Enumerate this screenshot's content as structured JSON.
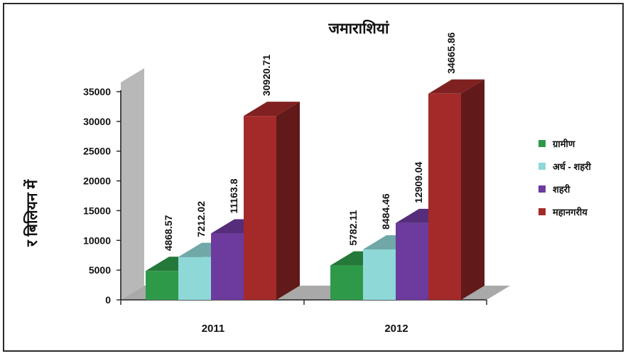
{
  "chart_data": {
    "type": "bar",
    "title": "जमाराशियां",
    "ylabel": "र बिलियन में",
    "xlabel": "",
    "categories": [
      "2011",
      "2012"
    ],
    "ylim": [
      0,
      35000
    ],
    "yticks": [
      "0",
      "5000",
      "10000",
      "15000",
      "20000",
      "25000",
      "30000",
      "35000"
    ],
    "legend_position": "right",
    "grid": false,
    "series": [
      {
        "name": "ग्रामीण",
        "values": [
          4868.57,
          5782.11
        ],
        "labels": [
          "4868.57",
          "5782.11"
        ],
        "color": "#2e9a49"
      },
      {
        "name": "अर्ध - शहरी",
        "values": [
          7212.02,
          8484.46
        ],
        "labels": [
          "7212.02",
          "8484.46"
        ],
        "color": "#8fd8d8"
      },
      {
        "name": "शहरी",
        "values": [
          11163.8,
          12909.04
        ],
        "labels": [
          "11163.8",
          "12909.04"
        ],
        "color": "#6d3a9e"
      },
      {
        "name": "महानगरीय",
        "values": [
          30920.71,
          34665.86
        ],
        "labels": [
          "30920.71",
          "34665.86"
        ],
        "color": "#a42a2a"
      }
    ]
  }
}
